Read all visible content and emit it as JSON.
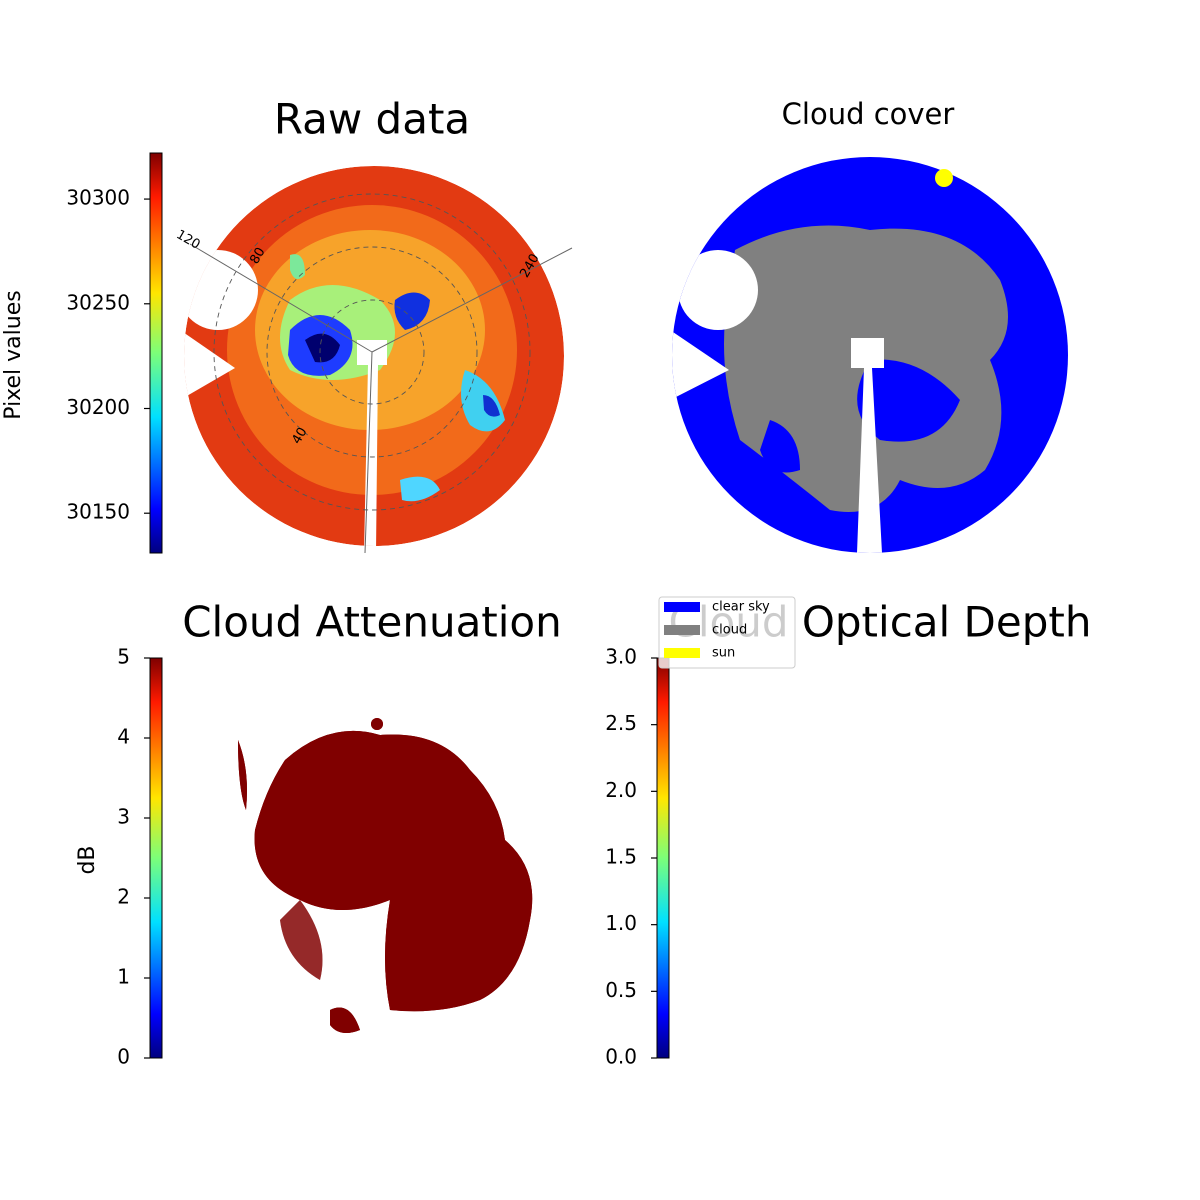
{
  "chart_data": [
    {
      "type": "image",
      "title": "Raw data",
      "colorbar_label": "Pixel values",
      "colormap": "jet",
      "ylim": [
        30131,
        30322
      ],
      "yticks": [
        30150,
        30200,
        30250,
        30300
      ],
      "annotations": [
        "120",
        "80",
        "40",
        "240"
      ]
    },
    {
      "type": "classification",
      "title": "Cloud cover",
      "series": [
        {
          "name": "clear sky",
          "color": "#0000ff"
        },
        {
          "name": "cloud",
          "color": "#808080"
        },
        {
          "name": "sun",
          "color": "#ffff00"
        }
      ]
    },
    {
      "type": "image",
      "title": "Cloud Attenuation",
      "colorbar_label": "dB",
      "colormap": "jet",
      "image_color": "#800000",
      "ylim": [
        0,
        5
      ],
      "yticks": [
        0,
        1,
        2,
        3,
        4,
        5
      ]
    },
    {
      "type": "image",
      "title": "Cloud Optical Depth",
      "colormap": "jet",
      "image_color": "#800000",
      "ylim": [
        0,
        3
      ],
      "yticks": [
        {
          "value": 0,
          "label": "0.0"
        },
        0.5,
        {
          "value": 1,
          "label": "1.0"
        },
        1.5,
        {
          "value": 2,
          "label": "2.0"
        },
        2.5,
        {
          "value": 3,
          "label": "3.0"
        }
      ]
    }
  ]
}
